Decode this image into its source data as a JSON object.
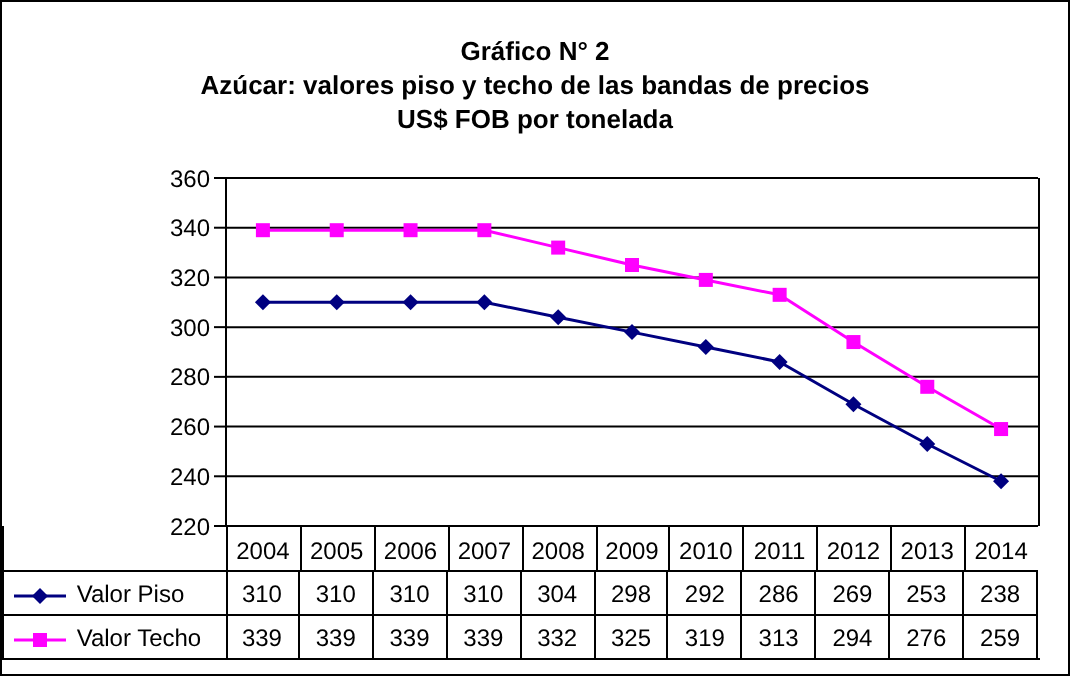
{
  "chart_data": {
    "type": "line",
    "title": "Gráfico N° 2",
    "subtitle": "Azúcar: valores piso y techo de las bandas de precios\nUS$ FOB por tonelada",
    "categories": [
      "2004",
      "2005",
      "2006",
      "2007",
      "2008",
      "2009",
      "2010",
      "2011",
      "2012",
      "2013",
      "2014"
    ],
    "series": [
      {
        "name": "Valor Piso",
        "color": "#000080",
        "marker": "diamond",
        "values": [
          310,
          310,
          310,
          310,
          304,
          298,
          292,
          286,
          269,
          253,
          238
        ]
      },
      {
        "name": "Valor Techo",
        "color": "#ff00ff",
        "marker": "square",
        "values": [
          339,
          339,
          339,
          339,
          332,
          325,
          319,
          313,
          294,
          276,
          259
        ]
      }
    ],
    "ylim": [
      220,
      360
    ],
    "yticks": [
      220,
      240,
      260,
      280,
      300,
      320,
      340,
      360
    ],
    "grid": "y",
    "legend": "bottom",
    "data_labels": true
  }
}
